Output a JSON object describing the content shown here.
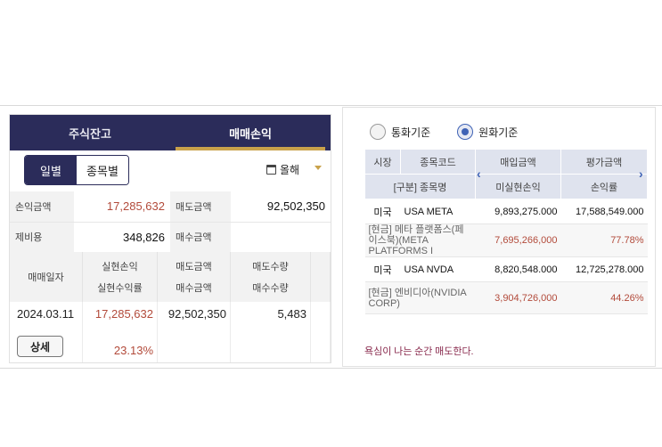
{
  "left": {
    "tabs": [
      "주식잔고",
      "매매손익"
    ],
    "segments": [
      "일별",
      "종목별"
    ],
    "period": "올해",
    "summary": [
      {
        "label": "손익금액",
        "value": "17,285,632",
        "label2": "매도금액",
        "value2": "92,502,350"
      },
      {
        "label": "제비용",
        "value": "348,826",
        "label2": "매수금액",
        "value2": ""
      }
    ],
    "grid_header": {
      "col1": "매매일자",
      "col2a": "실현손익",
      "col2b": "실현수익률",
      "col3a": "매도금액",
      "col3b": "매수금액",
      "col4a": "매도수량",
      "col4b": "매수수량"
    },
    "row": {
      "date": "2024.03.11",
      "detail": "상세",
      "realized": "17,285,632",
      "rate": "23.13%",
      "sell_amount": "92,502,350",
      "sell_qty": "5,483"
    }
  },
  "right": {
    "radio1": "통화기준",
    "radio2": "원화기준",
    "head1": {
      "market": "시장",
      "code": "종목코드",
      "buy": "매입금액",
      "eval": "평가금액"
    },
    "head2": {
      "name": "[구분] 종목명",
      "unreal": "미실현손익",
      "rate": "손익률"
    },
    "rows": [
      {
        "market": "미국",
        "ticker": "USA META",
        "buy": "9,893,275.000",
        "eval": "17,588,549.000",
        "name": "[현금] 메타 플랫폼스(페이스북)(META PLATFORMS I",
        "unreal": "7,695,266,000",
        "rate": "77.78%"
      },
      {
        "market": "미국",
        "ticker": "USA NVDA",
        "buy": "8,820,548.000",
        "eval": "12,725,278.000",
        "name": "[현금] 엔비디아(NVIDIA CORP)",
        "unreal": "3,904,726,000",
        "rate": "44.26%"
      }
    ],
    "motto": "욕심이 나는 순간 매도한다."
  },
  "colors": {
    "navy": "#2b2c5a",
    "gold": "#c9a24b",
    "red": "#b24a3a",
    "blue": "#3e62b5"
  }
}
